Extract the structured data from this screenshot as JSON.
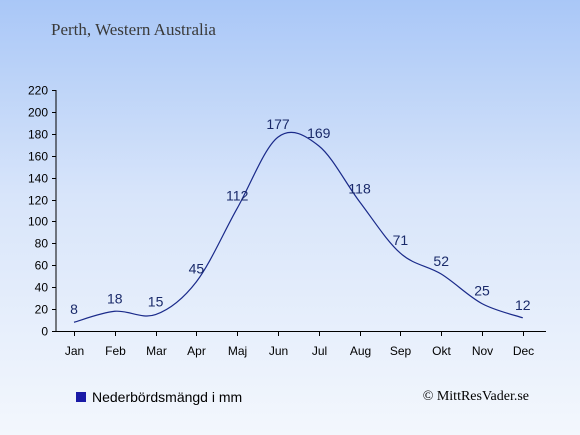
{
  "title": "Perth, Western Australia",
  "legend_label": "Nederbördsmängd i mm",
  "copyright": "© MittResVader.se",
  "colors": {
    "line": "#1a2a8a",
    "legend_swatch": "#1a1aa6",
    "label": "#1a2a6a"
  },
  "chart_data": {
    "type": "line",
    "categories": [
      "Jan",
      "Feb",
      "Mar",
      "Apr",
      "Maj",
      "Jun",
      "Jul",
      "Aug",
      "Sep",
      "Okt",
      "Nov",
      "Dec"
    ],
    "series": [
      {
        "name": "Nederbördsmängd i mm",
        "values": [
          8,
          18,
          15,
          45,
          112,
          177,
          169,
          118,
          71,
          52,
          25,
          12
        ]
      }
    ],
    "data_labels": [
      "8",
      "18",
      "15",
      "45",
      "112",
      "177",
      "169",
      "118",
      "71",
      "52",
      "25",
      "12"
    ],
    "yticks": [
      0,
      20,
      40,
      60,
      80,
      100,
      120,
      140,
      160,
      180,
      200,
      220
    ],
    "ylim": [
      0,
      220
    ],
    "grid": false,
    "legend_position": "bottom-left"
  }
}
